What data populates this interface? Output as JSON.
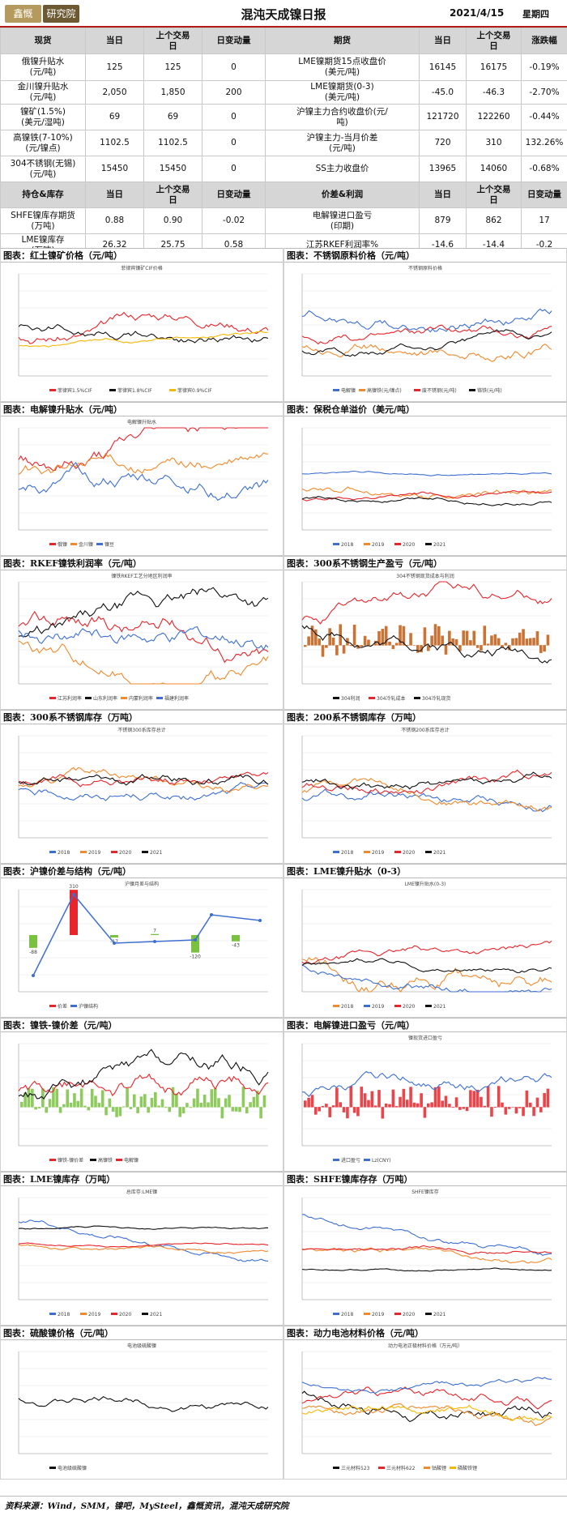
{
  "header": {
    "logo_left": "鑫慨",
    "logo_right": "研究院",
    "logo_text_1": "天成",
    "title": "混沌天成镍日报",
    "date": "2021/4/15",
    "weekday": "星期四"
  },
  "table_top": {
    "headers_left": [
      "现货",
      "当日",
      "上个交易日",
      "日变动量"
    ],
    "headers_right": [
      "期货",
      "当日",
      "上个交易日",
      "涨跌幅"
    ],
    "rows": [
      {
        "l": "俄镍升贴水\n(元/吨)",
        "l1": "125",
        "l2": "125",
        "l3": "0",
        "r": "LME镍期货15点收盘价\n(美元/吨)",
        "r1": "16145",
        "r2": "16175",
        "r3": "-0.19%"
      },
      {
        "l": "金川镍升贴水\n(元/吨)",
        "l1": "2,050",
        "l2": "1,850",
        "l3": "200",
        "r": "LME镍期货(0-3)\n(美元/吨)",
        "r1": "-45.0",
        "r2": "-46.3",
        "r3": "-2.70%"
      },
      {
        "l": "镍矿(1.5%)\n(美元/湿吨)",
        "l1": "69",
        "l2": "69",
        "l3": "0",
        "r": "沪镍主力合约收盘价(元/\n吨)",
        "r1": "121720",
        "r2": "122260",
        "r3": "-0.44%"
      },
      {
        "l": "高镍铁(7-10%)\n(元/镍点)",
        "l1": "1102.5",
        "l2": "1102.5",
        "l3": "0",
        "r": "沪镍主力-当月价差\n(元/吨)",
        "r1": "720",
        "r2": "310",
        "r3": "132.26%"
      },
      {
        "l": "304不锈钢(无锡)\n(元/吨)",
        "l1": "15450",
        "l2": "15450",
        "l3": "0",
        "r": "SS主力收盘价",
        "r1": "13965",
        "r2": "14060",
        "r3": "-0.68%"
      }
    ]
  },
  "table_bottom": {
    "headers_left": [
      "持仓&库存",
      "当日",
      "上个交易日",
      "日变动量"
    ],
    "headers_right": [
      "价差&利润",
      "当日",
      "上个交易日",
      "日变动量"
    ],
    "rows": [
      {
        "l": "SHFE镍库存期货\n(万吨)",
        "l1": "0.88",
        "l2": "0.90",
        "l3": "-0.02",
        "r": "电解镍进口盈亏\n(印期)",
        "r1": "879",
        "r2": "862",
        "r3": "17"
      },
      {
        "l": "LME镍库存\n(万吨)",
        "l1": "26.32",
        "l2": "25.75",
        "l3": "0.58",
        "r": "江苏RKEF利润率%",
        "r1": "-14.6",
        "r2": "-14.4",
        "r3": "-0.2"
      }
    ]
  },
  "panels": [
    {
      "title": "图表：红土镍矿价格（元/吨）",
      "chart_title": "菲律宾镍矿CIF价格"
    },
    {
      "title": "图表：不锈钢原料价格（元/吨）",
      "chart_title": "不锈钢原料价格"
    },
    {
      "title": "图表：电解镍升贴水（元/吨）",
      "chart_title": "电解镍升贴水"
    },
    {
      "title": "图表：保税仓单溢价（美元/吨）",
      "chart_title": ""
    },
    {
      "title": "图表：RKEF镍铁利润率（元/吨）",
      "chart_title": "镍铁RKEF工艺分地区利润率"
    },
    {
      "title": "图表：300系不锈钢生产盈亏（元/吨）",
      "chart_title": "304不锈钢现货成本与利润"
    },
    {
      "title": "图表：300系不锈钢库存（万吨）",
      "chart_title": "不锈钢300系库存总计"
    },
    {
      "title": "图表：200系不锈钢库存（万吨）",
      "chart_title": "不锈钢200系库存总计"
    },
    {
      "title": "图表：沪镍价差与结构（元/吨）",
      "chart_title": "沪镍月差与结构"
    },
    {
      "title": "图表：LME镍升贴水（0-3）",
      "chart_title": "LME镍升贴水(0-3)"
    },
    {
      "title": "图表：镍铁-镍价差（元/吨）",
      "chart_title": ""
    },
    {
      "title": "图表：电解镍进口盈亏（元/吨）",
      "chart_title": "镍现货进口盈亏"
    },
    {
      "title": "图表：LME镍库存（万吨）",
      "chart_title": "总库存:LME镍"
    },
    {
      "title": "图表：SHFE镍库存存（万吨）",
      "chart_title": "SHFE镍库存"
    },
    {
      "title": "图表：硫酸镍价格（元/吨）",
      "chart_title": "电池级硫酸镍"
    },
    {
      "title": "图表：动力电池材料价格（元/吨）",
      "chart_title": "动力电池正极材料价格（万元/吨）"
    }
  ],
  "legends": {
    "p0": [
      "菲律宾1.5%CIF",
      "菲律宾1.8%CIF",
      "菲律宾0.9%CIF"
    ],
    "p1": [
      "电解镍",
      "高镍铁(元/镍点)",
      "废不锈钢(元/吨)",
      "铬铁(元/吨)"
    ],
    "p2": [
      "俄镍",
      "金川镍",
      "镍豆"
    ],
    "p3": [
      "2018",
      "2019",
      "2020",
      "2021"
    ],
    "p4": [
      "江苏利润率",
      "山东利润率",
      "内蒙利润率",
      "福建利润率"
    ],
    "p5": [
      "304利润",
      "304冷轧成本",
      "304冷轧现货"
    ],
    "p6": [
      "2018",
      "2019",
      "2020",
      "2021"
    ],
    "p7": [
      "2018",
      "2019",
      "2020",
      "2021"
    ],
    "p8": [
      "价差",
      "沪镍结构"
    ],
    "p9": [
      "2018",
      "2019",
      "2020",
      "2021"
    ],
    "p10": [
      "镍铁-镍价差",
      "高镍铁",
      "电解镍"
    ],
    "p11": [
      "进口盈亏",
      "Lz(CNY)"
    ],
    "p12": [
      "2018",
      "2019",
      "2020",
      "2021"
    ],
    "p13": [
      "2018",
      "2019",
      "2020",
      "2021"
    ],
    "p14": [
      "电池级硫酸镍"
    ],
    "p15": [
      "三元材料523",
      "三元材料622",
      "钴酸锂",
      "磷酸铁锂"
    ]
  },
  "bar_labels": {
    "b1": "-88",
    "b2": "310",
    "b3": "-17",
    "b4": "7",
    "b5": "-120",
    "b6": "-43"
  },
  "colors": {
    "red": "#e8252b",
    "black": "#111111",
    "blue": "#3d6fd1",
    "orange": "#f08a2c",
    "yellow": "#f5b800",
    "green": "#7ac142",
    "brown": "#c05a10",
    "accent": "#b31b1b"
  },
  "footer": "资料来源：Wind，SMM，镍吧，MySteel，鑫慨资讯，混沌天成研究院"
}
